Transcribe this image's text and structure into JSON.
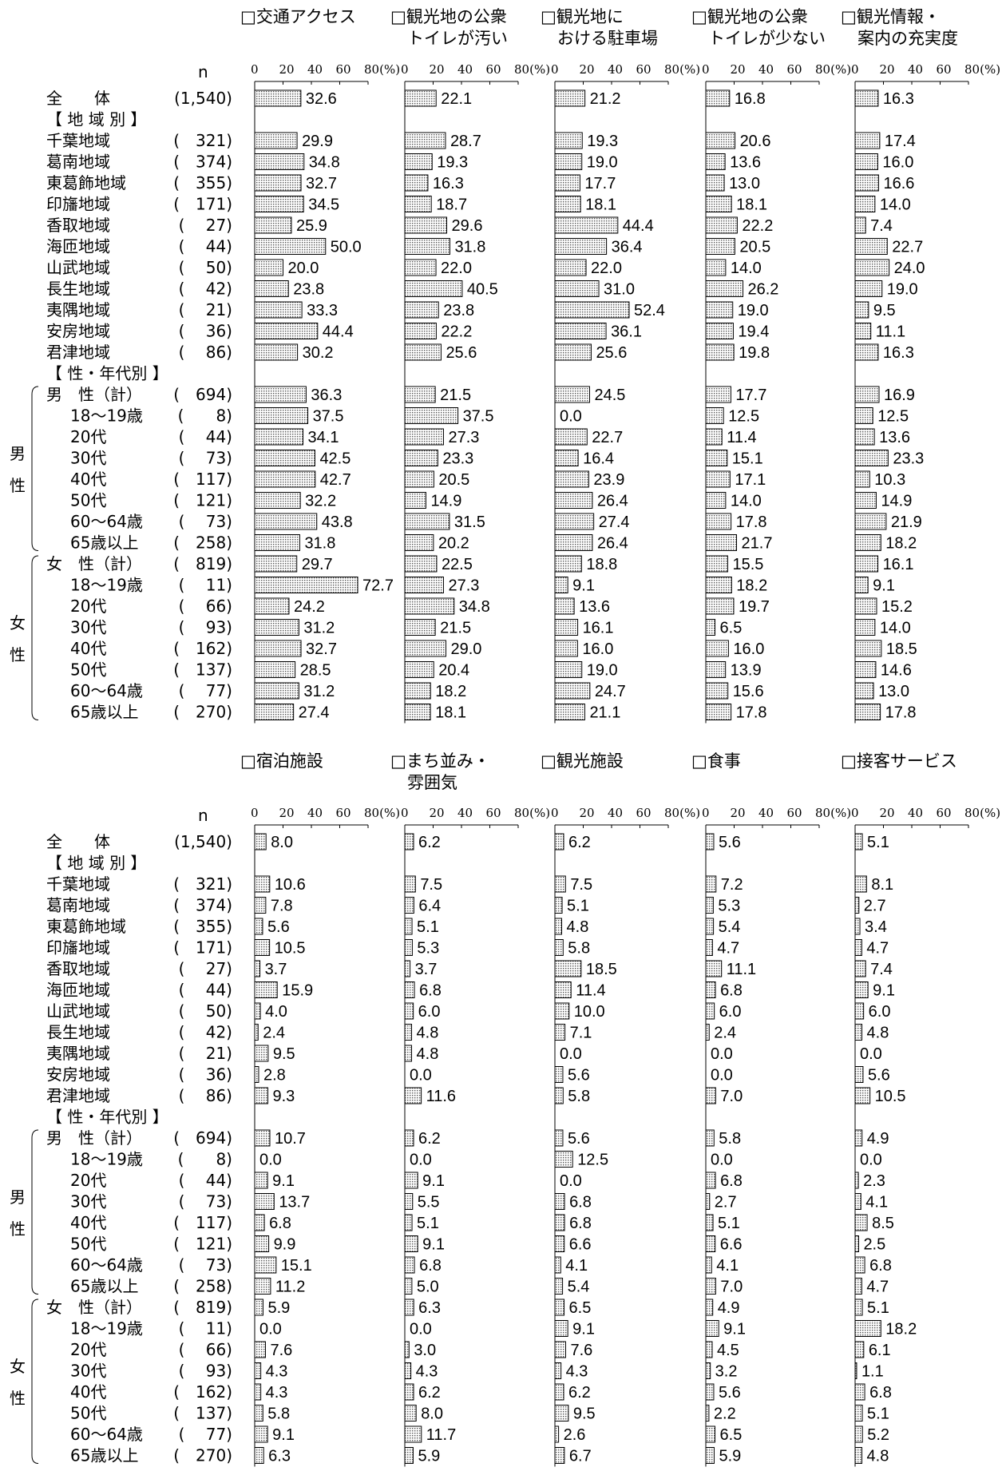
{
  "chart_data": {
    "type": "bar",
    "n_label": "n",
    "tick_labels": [
      "0",
      "20",
      "40",
      "60",
      "80(%)"
    ],
    "xlim": [
      0,
      80
    ],
    "rows": [
      {
        "label": "全　　体",
        "n": "(1,540)"
      },
      {
        "label": "【 地 域 別 】",
        "n": ""
      },
      {
        "label": "千葉地域",
        "n": "(　321)"
      },
      {
        "label": "葛南地域",
        "n": "(　374)"
      },
      {
        "label": "東葛飾地域",
        "n": "(　355)"
      },
      {
        "label": "印旛地域",
        "n": "(　171)"
      },
      {
        "label": "香取地域",
        "n": "(　 27)"
      },
      {
        "label": "海匝地域",
        "n": "(　 44)"
      },
      {
        "label": "山武地域",
        "n": "(　 50)"
      },
      {
        "label": "長生地域",
        "n": "(　 42)"
      },
      {
        "label": "夷隅地域",
        "n": "(　 21)"
      },
      {
        "label": "安房地域",
        "n": "(　 36)"
      },
      {
        "label": "君津地域",
        "n": "(　 86)"
      },
      {
        "label": "【 性・年代別 】",
        "n": ""
      },
      {
        "label": "男　性（計）",
        "n": "(　694)"
      },
      {
        "label": "18～19歳",
        "n": "(　　8)"
      },
      {
        "label": "20代",
        "n": "(　 44)"
      },
      {
        "label": "30代",
        "n": "(　 73)"
      },
      {
        "label": "40代",
        "n": "(　117)"
      },
      {
        "label": "50代",
        "n": "(　121)"
      },
      {
        "label": "60～64歳",
        "n": "(　 73)"
      },
      {
        "label": "65歳以上",
        "n": "(　258)"
      },
      {
        "label": "女　性（計）",
        "n": "(　819)"
      },
      {
        "label": "18～19歳",
        "n": "(　 11)"
      },
      {
        "label": "20代",
        "n": "(　 66)"
      },
      {
        "label": "30代",
        "n": "(　 93)"
      },
      {
        "label": "40代",
        "n": "(　162)"
      },
      {
        "label": "50代",
        "n": "(　137)"
      },
      {
        "label": "60～64歳",
        "n": "(　 77)"
      },
      {
        "label": "65歳以上",
        "n": "(　270)"
      }
    ],
    "group_labels": {
      "male": [
        "男",
        "性"
      ],
      "female": [
        "女",
        "性"
      ]
    },
    "panels": [
      {
        "title": [
          "□交通アクセス"
        ],
        "values": [
          32.6,
          null,
          29.9,
          34.8,
          32.7,
          34.5,
          25.9,
          50.0,
          20.0,
          23.8,
          33.3,
          44.4,
          30.2,
          null,
          36.3,
          37.5,
          34.1,
          42.5,
          42.7,
          32.2,
          43.8,
          31.8,
          29.7,
          72.7,
          24.2,
          31.2,
          32.7,
          28.5,
          31.2,
          27.4
        ]
      },
      {
        "title": [
          "□観光地の公衆",
          "　トイレが汚い"
        ],
        "values": [
          22.1,
          null,
          28.7,
          19.3,
          16.3,
          18.7,
          29.6,
          31.8,
          22.0,
          40.5,
          23.8,
          22.2,
          25.6,
          null,
          21.5,
          37.5,
          27.3,
          23.3,
          20.5,
          14.9,
          31.5,
          20.2,
          22.5,
          27.3,
          34.8,
          21.5,
          29.0,
          20.4,
          18.2,
          18.1
        ]
      },
      {
        "title": [
          "□観光地に",
          "　おける駐車場"
        ],
        "values": [
          21.2,
          null,
          19.3,
          19.0,
          17.7,
          18.1,
          44.4,
          36.4,
          22.0,
          31.0,
          52.4,
          36.1,
          25.6,
          null,
          24.5,
          0.0,
          22.7,
          16.4,
          23.9,
          26.4,
          27.4,
          26.4,
          18.8,
          9.1,
          13.6,
          16.1,
          16.0,
          19.0,
          24.7,
          21.1
        ]
      },
      {
        "title": [
          "□観光地の公衆",
          "　トイレが少ない"
        ],
        "values": [
          16.8,
          null,
          20.6,
          13.6,
          13.0,
          18.1,
          22.2,
          20.5,
          14.0,
          26.2,
          19.0,
          19.4,
          19.8,
          null,
          17.7,
          12.5,
          11.4,
          15.1,
          17.1,
          14.0,
          17.8,
          21.7,
          15.5,
          18.2,
          19.7,
          6.5,
          16.0,
          13.9,
          15.6,
          17.8
        ]
      },
      {
        "title": [
          "□観光情報・",
          "　案内の充実度"
        ],
        "values": [
          16.3,
          null,
          17.4,
          16.0,
          16.6,
          14.0,
          7.4,
          22.7,
          24.0,
          19.0,
          9.5,
          11.1,
          16.3,
          null,
          16.9,
          12.5,
          13.6,
          23.3,
          10.3,
          14.9,
          21.9,
          18.2,
          16.1,
          9.1,
          15.2,
          14.0,
          18.5,
          14.6,
          13.0,
          17.8
        ]
      },
      {
        "title": [
          "□宿泊施設"
        ],
        "values": [
          8.0,
          null,
          10.6,
          7.8,
          5.6,
          10.5,
          3.7,
          15.9,
          4.0,
          2.4,
          9.5,
          2.8,
          9.3,
          null,
          10.7,
          0.0,
          9.1,
          13.7,
          6.8,
          9.9,
          15.1,
          11.2,
          5.9,
          0.0,
          7.6,
          4.3,
          4.3,
          5.8,
          9.1,
          6.3
        ]
      },
      {
        "title": [
          "□まち並み・",
          "　雰囲気"
        ],
        "values": [
          6.2,
          null,
          7.5,
          6.4,
          5.1,
          5.3,
          3.7,
          6.8,
          6.0,
          4.8,
          4.8,
          0.0,
          11.6,
          null,
          6.2,
          0.0,
          9.1,
          5.5,
          5.1,
          9.1,
          6.8,
          5.0,
          6.3,
          0.0,
          3.0,
          4.3,
          6.2,
          8.0,
          11.7,
          5.9
        ]
      },
      {
        "title": [
          "□観光施設"
        ],
        "values": [
          6.2,
          null,
          7.5,
          5.1,
          4.8,
          5.8,
          18.5,
          11.4,
          10.0,
          7.1,
          0.0,
          5.6,
          5.8,
          null,
          5.6,
          12.5,
          0.0,
          6.8,
          6.8,
          6.6,
          4.1,
          5.4,
          6.5,
          9.1,
          7.6,
          4.3,
          6.2,
          9.5,
          2.6,
          6.7
        ]
      },
      {
        "title": [
          "□食事"
        ],
        "values": [
          5.6,
          null,
          7.2,
          5.3,
          5.4,
          4.7,
          11.1,
          6.8,
          6.0,
          2.4,
          0.0,
          0.0,
          7.0,
          null,
          5.8,
          0.0,
          6.8,
          2.7,
          5.1,
          6.6,
          4.1,
          7.0,
          4.9,
          9.1,
          4.5,
          3.2,
          5.6,
          2.2,
          6.5,
          5.9
        ]
      },
      {
        "title": [
          "□接客サービス"
        ],
        "values": [
          5.1,
          null,
          8.1,
          2.7,
          3.4,
          4.7,
          7.4,
          9.1,
          6.0,
          4.8,
          0.0,
          5.6,
          10.5,
          null,
          4.9,
          0.0,
          2.3,
          4.1,
          8.5,
          2.5,
          6.8,
          4.7,
          5.1,
          18.2,
          6.1,
          1.1,
          6.8,
          5.1,
          5.2,
          4.8
        ]
      }
    ]
  }
}
